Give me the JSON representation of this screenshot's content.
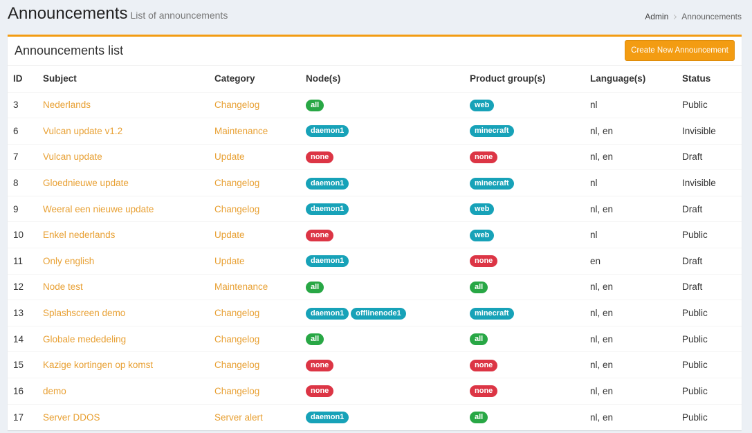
{
  "header": {
    "title": "Announcements",
    "subtitle": "List of announcements",
    "breadcrumb": [
      "Admin",
      "Announcements"
    ]
  },
  "box": {
    "title": "Announcements list",
    "button": "Create New Announcement"
  },
  "table": {
    "headers": [
      "ID",
      "Subject",
      "Category",
      "Node(s)",
      "Product group(s)",
      "Language(s)",
      "Status"
    ],
    "rows": [
      {
        "id": 3,
        "subject": "Nederlands",
        "category": "Changelog",
        "nodes": [
          {
            "text": "all",
            "color": "#28a745"
          }
        ],
        "groups": [
          {
            "text": "web",
            "color": "#17a2b8"
          }
        ],
        "languages": "nl",
        "status": "Public"
      },
      {
        "id": 6,
        "subject": "Vulcan update v1.2",
        "category": "Maintenance",
        "nodes": [
          {
            "text": "daemon1",
            "color": "#17a2b8"
          }
        ],
        "groups": [
          {
            "text": "minecraft",
            "color": "#17a2b8"
          }
        ],
        "languages": "nl, en",
        "status": "Invisible"
      },
      {
        "id": 7,
        "subject": "Vulcan update",
        "category": "Update",
        "nodes": [
          {
            "text": "none",
            "color": "#dc3545"
          }
        ],
        "groups": [
          {
            "text": "none",
            "color": "#dc3545"
          }
        ],
        "languages": "nl, en",
        "status": "Draft"
      },
      {
        "id": 8,
        "subject": "Gloednieuwe update",
        "category": "Changelog",
        "nodes": [
          {
            "text": "daemon1",
            "color": "#17a2b8"
          }
        ],
        "groups": [
          {
            "text": "minecraft",
            "color": "#17a2b8"
          }
        ],
        "languages": "nl",
        "status": "Invisible"
      },
      {
        "id": 9,
        "subject": "Weeral een nieuwe update",
        "category": "Changelog",
        "nodes": [
          {
            "text": "daemon1",
            "color": "#17a2b8"
          }
        ],
        "groups": [
          {
            "text": "web",
            "color": "#17a2b8"
          }
        ],
        "languages": "nl, en",
        "status": "Draft"
      },
      {
        "id": 10,
        "subject": "Enkel nederlands",
        "category": "Update",
        "nodes": [
          {
            "text": "none",
            "color": "#dc3545"
          }
        ],
        "groups": [
          {
            "text": "web",
            "color": "#17a2b8"
          }
        ],
        "languages": "nl",
        "status": "Public"
      },
      {
        "id": 11,
        "subject": "Only english",
        "category": "Update",
        "nodes": [
          {
            "text": "daemon1",
            "color": "#17a2b8"
          }
        ],
        "groups": [
          {
            "text": "none",
            "color": "#dc3545"
          }
        ],
        "languages": "en",
        "status": "Draft"
      },
      {
        "id": 12,
        "subject": "Node test",
        "category": "Maintenance",
        "nodes": [
          {
            "text": "all",
            "color": "#28a745"
          }
        ],
        "groups": [
          {
            "text": "all",
            "color": "#28a745"
          }
        ],
        "languages": "nl, en",
        "status": "Draft"
      },
      {
        "id": 13,
        "subject": "Splashscreen demo",
        "category": "Changelog",
        "nodes": [
          {
            "text": "daemon1",
            "color": "#17a2b8"
          },
          {
            "text": "offlinenode1",
            "color": "#17a2b8"
          }
        ],
        "groups": [
          {
            "text": "minecraft",
            "color": "#17a2b8"
          }
        ],
        "languages": "nl, en",
        "status": "Public"
      },
      {
        "id": 14,
        "subject": "Globale mededeling",
        "category": "Changelog",
        "nodes": [
          {
            "text": "all",
            "color": "#28a745"
          }
        ],
        "groups": [
          {
            "text": "all",
            "color": "#28a745"
          }
        ],
        "languages": "nl, en",
        "status": "Public"
      },
      {
        "id": 15,
        "subject": "Kazige kortingen op komst",
        "category": "Changelog",
        "nodes": [
          {
            "text": "none",
            "color": "#dc3545"
          }
        ],
        "groups": [
          {
            "text": "none",
            "color": "#dc3545"
          }
        ],
        "languages": "nl, en",
        "status": "Public"
      },
      {
        "id": 16,
        "subject": "demo",
        "category": "Changelog",
        "nodes": [
          {
            "text": "none",
            "color": "#dc3545"
          }
        ],
        "groups": [
          {
            "text": "none",
            "color": "#dc3545"
          }
        ],
        "languages": "nl, en",
        "status": "Public"
      },
      {
        "id": 17,
        "subject": "Server DDOS",
        "category": "Server alert",
        "nodes": [
          {
            "text": "daemon1",
            "color": "#17a2b8"
          }
        ],
        "groups": [
          {
            "text": "all",
            "color": "#28a745"
          }
        ],
        "languages": "nl, en",
        "status": "Public"
      }
    ]
  }
}
